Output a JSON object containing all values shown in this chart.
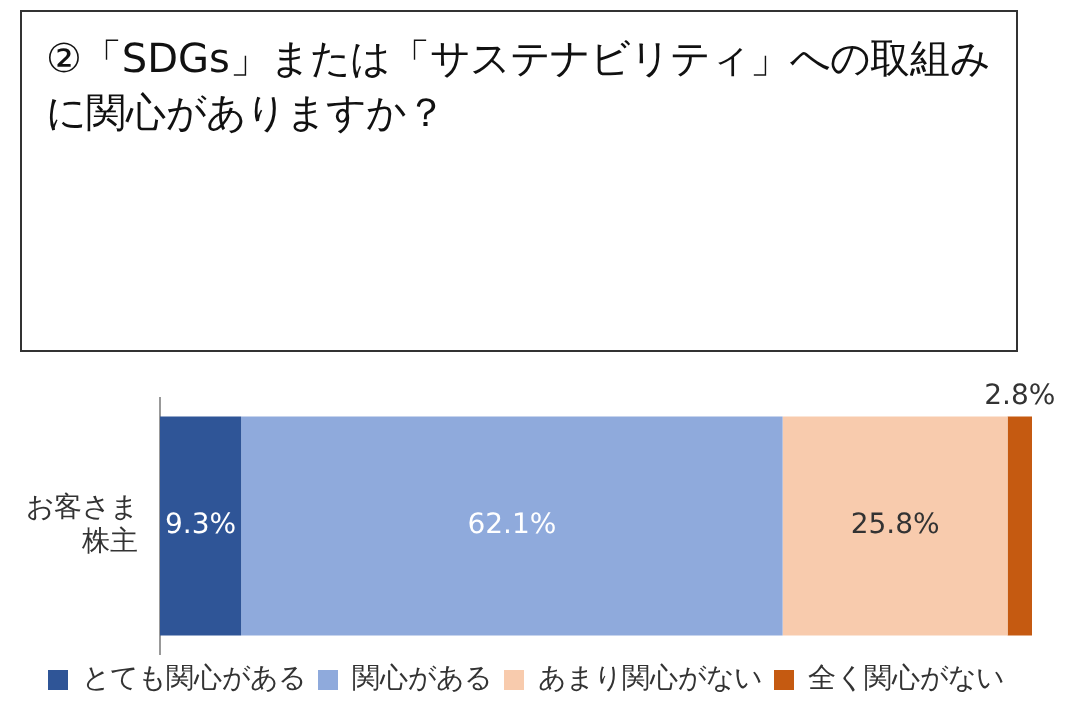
{
  "chart_data": {
    "type": "bar",
    "title": "②「SDGs」または「サステナビリティ」への取組みに関心がありますか？",
    "categories": [
      "お客さま株主"
    ],
    "orientation": "horizontal",
    "stacked": true,
    "xlim": [
      0,
      100
    ],
    "tick_labels": "y",
    "legend": "bottom",
    "series": [
      {
        "name": "とても関心がある",
        "color": "#2f5597",
        "values": [
          9.3
        ],
        "value_labels": [
          "9.3%"
        ]
      },
      {
        "name": "関心がある",
        "color": "#8faadc",
        "values": [
          62.1
        ],
        "value_labels": [
          "62.1%"
        ]
      },
      {
        "name": "あまり関心がない",
        "color": "#f8cbad",
        "values": [
          25.8
        ],
        "value_labels": [
          "25.8%"
        ]
      },
      {
        "name": "全く関心がない",
        "color": "#c55a11",
        "values": [
          2.8
        ],
        "value_labels": [
          "2.8%"
        ]
      }
    ]
  }
}
